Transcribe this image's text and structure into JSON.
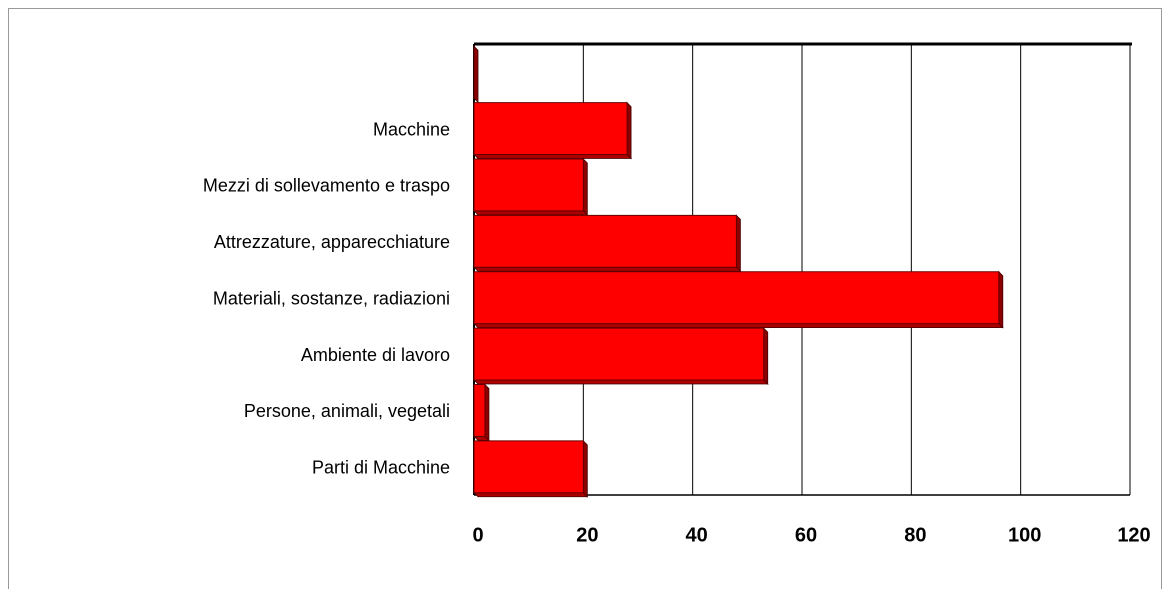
{
  "chart_data": {
    "type": "bar",
    "orientation": "horizontal",
    "categories": [
      null,
      "Macchine",
      "Mezzi di sollevamento e traspo",
      "Attrezzature, apparecchiature",
      "Materiali, sostanze, radiazioni",
      "Ambiente di lavoro",
      "Persone, animali, vegetali",
      "Parti di Macchine"
    ],
    "values": [
      0,
      28,
      20,
      48,
      96,
      53,
      2,
      20
    ],
    "color": "#ff0000",
    "xlim": [
      0,
      120
    ],
    "xticks": [
      0,
      20,
      40,
      60,
      80,
      100,
      120
    ],
    "grid": true
  }
}
